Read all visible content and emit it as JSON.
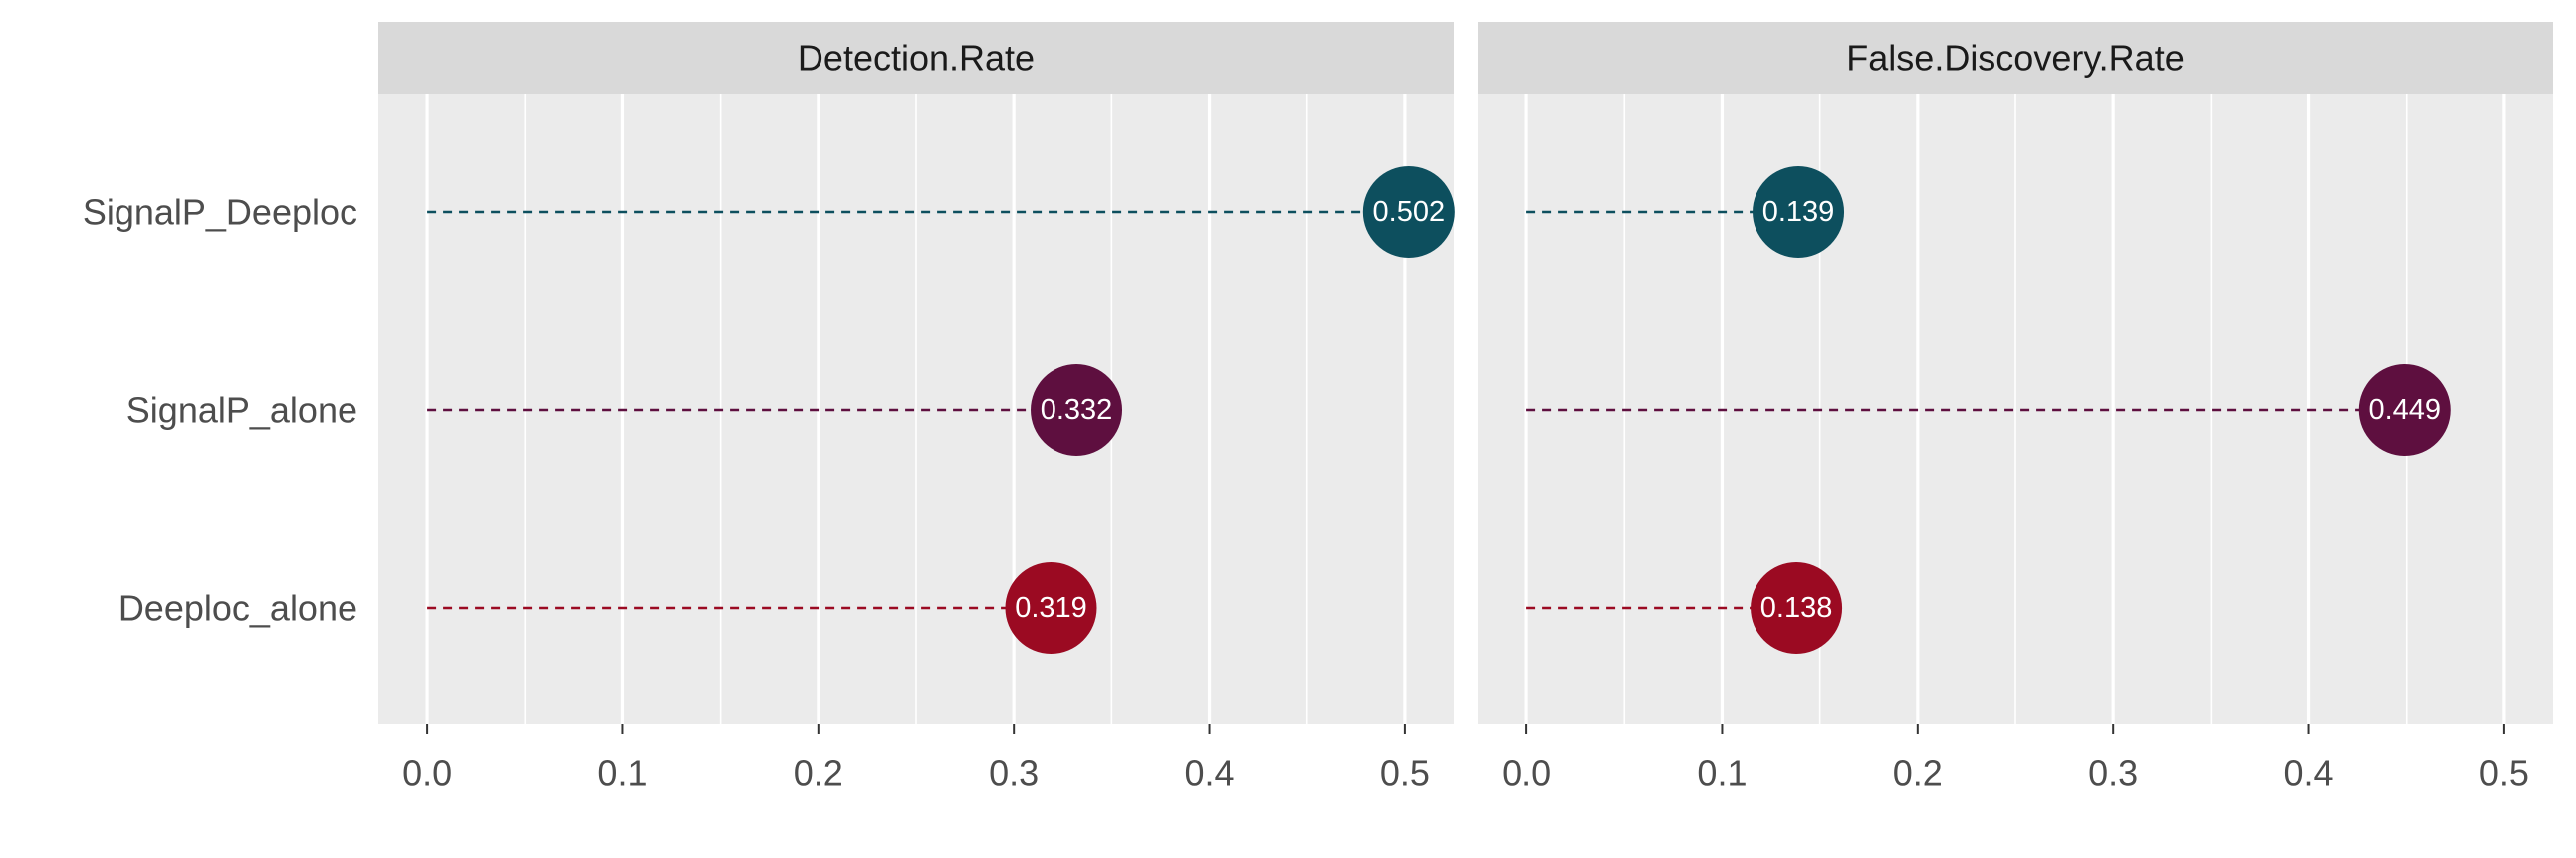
{
  "chart_data": {
    "type": "lollipop",
    "categories": [
      "SignalP_Deeploc",
      "SignalP_alone",
      "Deeploc_alone"
    ],
    "category_colors": {
      "SignalP_Deeploc": "#0d4f5e",
      "SignalP_alone": "#5e0f3f",
      "Deeploc_alone": "#9b0a22"
    },
    "xlim": [
      -0.025,
      0.525
    ],
    "x_ticks": [
      0.0,
      0.1,
      0.2,
      0.3,
      0.4,
      0.5
    ],
    "x_tick_labels": [
      "0.0",
      "0.1",
      "0.2",
      "0.3",
      "0.4",
      "0.5"
    ],
    "grid": true,
    "panel_background": "#ebebeb",
    "strip_background": "#d9d9d9",
    "facets": [
      {
        "title": "Detection.Rate",
        "values": [
          0.502,
          0.332,
          0.319
        ],
        "labels": [
          "0.502",
          "0.332",
          "0.319"
        ]
      },
      {
        "title": "False.Discovery.Rate",
        "values": [
          0.139,
          0.449,
          0.138
        ],
        "labels": [
          "0.139",
          "0.449",
          "0.138"
        ]
      }
    ]
  }
}
